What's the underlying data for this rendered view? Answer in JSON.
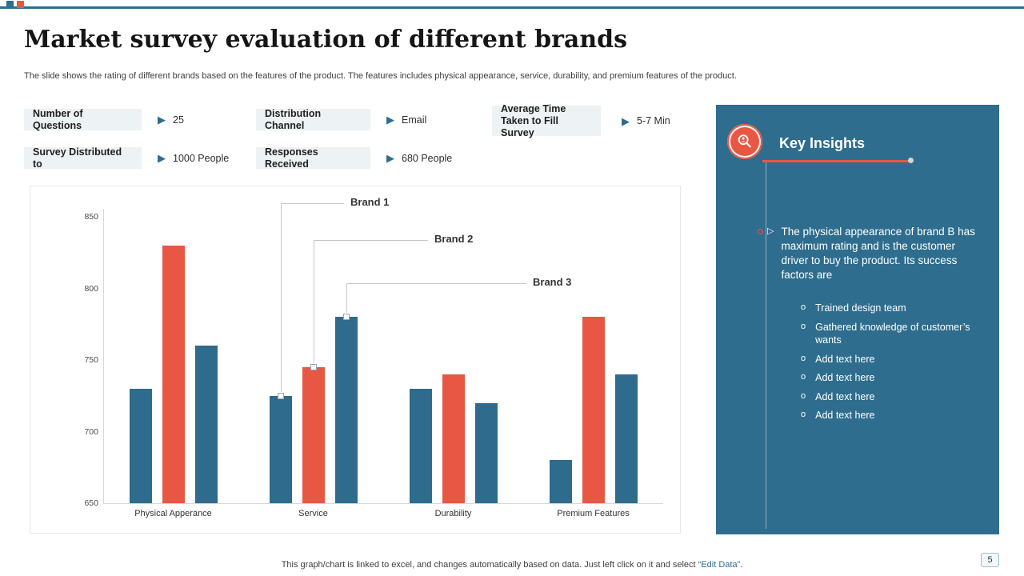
{
  "page": {
    "title": "Market survey evaluation of different brands",
    "subtitle": "The slide shows the rating of different brands based on the features of the product. The features includes physical appearance, service, durability, and premium  features of the product.",
    "page_number": "5"
  },
  "theme": {
    "accent_teal": "#2e6d8e",
    "accent_orange": "#e85744",
    "bar_blue": "#2e6b8c"
  },
  "icons": {
    "arrow_right": "▶",
    "triangle_bullet": "▷",
    "sub_bullet": "o"
  },
  "stats": [
    {
      "label": "Number of Questions",
      "value": "25"
    },
    {
      "label": "Distribution Channel",
      "value": "Email"
    },
    {
      "label": "Average Time Taken to Fill Survey",
      "value": "5-7 Min"
    },
    {
      "label": "Survey Distributed to",
      "value": "1000 People"
    },
    {
      "label": "Responses Received",
      "value": "680 People"
    }
  ],
  "chart_data": {
    "type": "bar",
    "title": "",
    "categories": [
      "Physical Apperance",
      "Service",
      "Durability",
      "Premium Features"
    ],
    "series": [
      {
        "name": "Brand 1",
        "color": "#2e6b8c",
        "values": [
          730,
          725,
          730,
          680
        ]
      },
      {
        "name": "Brand 2",
        "color": "#e85744",
        "values": [
          830,
          745,
          740,
          780
        ]
      },
      {
        "name": "Brand 3",
        "color": "#2e6b8c",
        "values": [
          760,
          780,
          720,
          740
        ]
      }
    ],
    "ylim": [
      650,
      850
    ],
    "yticks": [
      650,
      700,
      750,
      800,
      850
    ],
    "grid": false,
    "legend": "none",
    "annotations": [
      {
        "label": "Brand 1",
        "series": 0,
        "category": "Service"
      },
      {
        "label": "Brand 2",
        "series": 1,
        "category": "Service"
      },
      {
        "label": "Brand 3",
        "series": 2,
        "category": "Service"
      }
    ]
  },
  "insights": {
    "title": "Key Insights",
    "paragraph": "The physical appearance of brand B has maximum rating and is the customer driver to buy the product. Its success factors are",
    "bullets": [
      "Trained  design team",
      "Gathered  knowledge  of customer’s wants",
      "Add text here",
      "Add text here",
      "Add text here",
      "Add text here"
    ]
  },
  "footer": {
    "prefix": "This graph/chart is linked to excel, and changes automatically based on data. Just left click on it and select ",
    "highlight": "“Edit Data”",
    "suffix": "."
  }
}
